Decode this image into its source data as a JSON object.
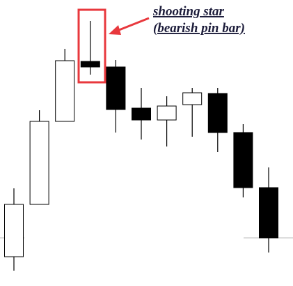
{
  "chart_data": {
    "type": "candlestick",
    "categories": [
      null,
      null,
      null,
      null,
      null,
      null,
      null,
      null,
      null,
      null,
      null
    ],
    "open": [
      42,
      117,
      236,
      322,
      314,
      255,
      238,
      260,
      276,
      220,
      141
    ],
    "close": [
      117,
      236,
      323,
      314,
      253,
      238,
      258,
      277,
      220,
      141,
      69
    ],
    "high": [
      140,
      252,
      340,
      380,
      324,
      284,
      272,
      284,
      284,
      232,
      170
    ],
    "low": [
      22,
      117,
      236,
      303,
      220,
      210,
      200,
      214,
      192,
      127,
      48
    ],
    "ylim": [
      0,
      410
    ],
    "up_color": "#ffffff",
    "down_color": "#000000",
    "annotations": [
      "shooting star",
      "(bearish pin bar)"
    ],
    "annotation_color": "#1c1c3a",
    "highlight_color": "#e8383d"
  }
}
